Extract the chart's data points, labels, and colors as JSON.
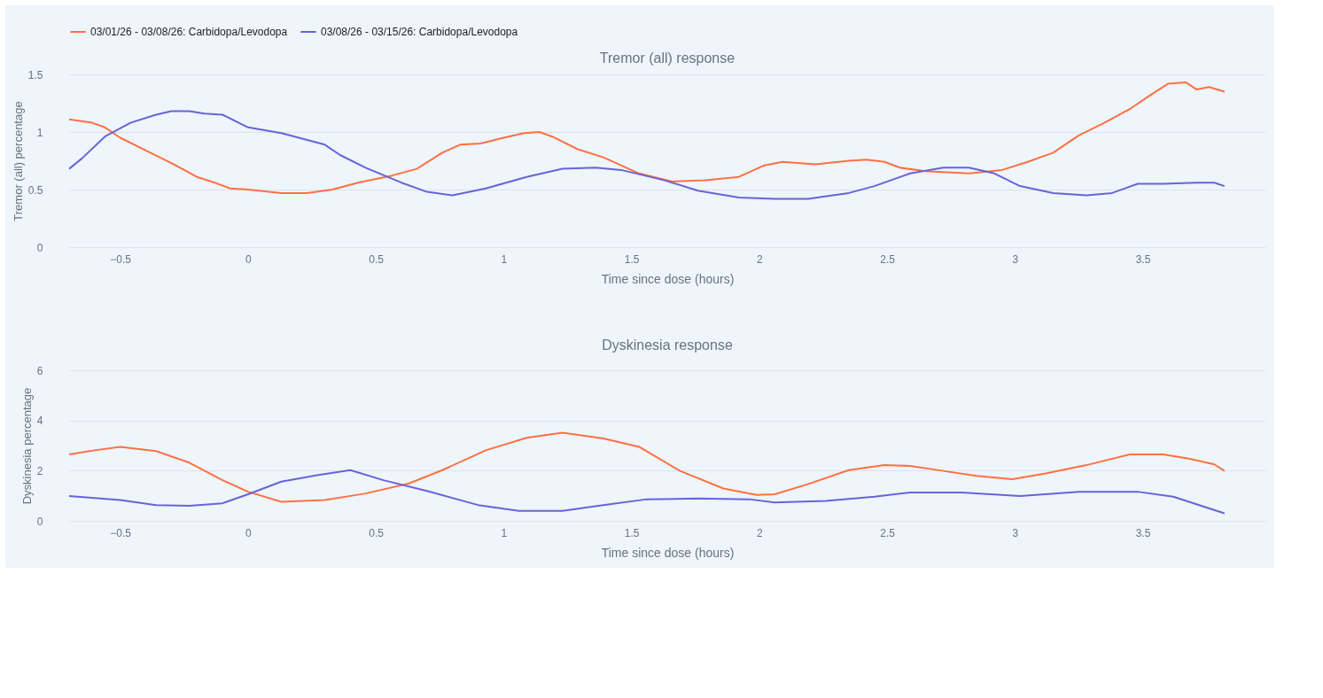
{
  "chart_data": [
    {
      "type": "line",
      "title": "Tremor (all) response",
      "xlabel": "Time since dose (hours)",
      "ylabel": "Tremor (all) percentage",
      "xlim": [
        -0.7,
        3.98
      ],
      "xticks": [
        {
          "value": -0.5,
          "label": "−0.5"
        },
        0,
        0.5,
        1,
        1.5,
        2,
        2.5,
        3,
        3.5
      ],
      "ylim": [
        0,
        1.5
      ],
      "yticks": [
        0,
        0.5,
        1,
        1.5
      ],
      "grid": "y",
      "legend": "top left",
      "series": [
        {
          "name": "03/01/26 - 03/08/26: Carbidopa/Levodopa",
          "color": "#ff7043",
          "x": [
            -0.7,
            -0.61,
            -0.56,
            -0.5,
            -0.4,
            -0.3,
            -0.2,
            -0.13,
            -0.07,
            0,
            0.13,
            0.23,
            0.33,
            0.43,
            0.56,
            0.66,
            0.76,
            0.83,
            0.91,
            1.0,
            1.08,
            1.14,
            1.19,
            1.29,
            1.39,
            1.53,
            1.66,
            1.79,
            1.92,
            2.02,
            2.09,
            2.22,
            2.35,
            2.42,
            2.49,
            2.55,
            2.65,
            2.82,
            2.95,
            3.05,
            3.15,
            3.25,
            3.35,
            3.45,
            3.53,
            3.6,
            3.67,
            3.71,
            3.76,
            3.82
          ],
          "values": [
            1.11,
            1.08,
            1.04,
            0.95,
            0.84,
            0.73,
            0.61,
            0.56,
            0.51,
            0.5,
            0.47,
            0.47,
            0.5,
            0.56,
            0.62,
            0.68,
            0.82,
            0.89,
            0.9,
            0.95,
            0.99,
            1.0,
            0.96,
            0.85,
            0.78,
            0.64,
            0.57,
            0.58,
            0.61,
            0.71,
            0.74,
            0.72,
            0.75,
            0.76,
            0.74,
            0.69,
            0.66,
            0.64,
            0.67,
            0.74,
            0.82,
            0.97,
            1.08,
            1.2,
            1.32,
            1.42,
            1.43,
            1.37,
            1.39,
            1.35
          ]
        },
        {
          "name": "03/08/26 - 03/15/26: Carbidopa/Levodopa",
          "color": "#6b62d6",
          "x": [
            -0.7,
            -0.65,
            -0.56,
            -0.46,
            -0.36,
            -0.3,
            -0.23,
            -0.17,
            -0.1,
            0,
            0.13,
            0.3,
            0.36,
            0.46,
            0.6,
            0.7,
            0.8,
            0.93,
            1.09,
            1.23,
            1.36,
            1.46,
            1.63,
            1.76,
            1.92,
            2.06,
            2.19,
            2.35,
            2.45,
            2.59,
            2.72,
            2.82,
            2.92,
            3.02,
            3.15,
            3.28,
            3.38,
            3.48,
            3.58,
            3.71,
            3.78,
            3.82
          ],
          "values": [
            0.68,
            0.77,
            0.96,
            1.08,
            1.15,
            1.18,
            1.18,
            1.16,
            1.15,
            1.04,
            0.99,
            0.89,
            0.8,
            0.69,
            0.56,
            0.48,
            0.45,
            0.51,
            0.61,
            0.68,
            0.69,
            0.67,
            0.58,
            0.49,
            0.43,
            0.42,
            0.42,
            0.47,
            0.53,
            0.64,
            0.69,
            0.69,
            0.64,
            0.53,
            0.47,
            0.45,
            0.47,
            0.55,
            0.55,
            0.56,
            0.56,
            0.53
          ]
        }
      ]
    },
    {
      "type": "line",
      "title": "Dyskinesia response",
      "xlabel": "Time since dose (hours)",
      "ylabel": "Dyskinesia percentage",
      "xlim": [
        -0.7,
        3.98
      ],
      "xticks": [
        {
          "value": -0.5,
          "label": "−0.5"
        },
        0,
        0.5,
        1,
        1.5,
        2,
        2.5,
        3,
        3.5
      ],
      "ylim": [
        0,
        6
      ],
      "yticks": [
        0,
        2,
        4,
        6
      ],
      "grid": "y",
      "series": [
        {
          "color": "#ff7043",
          "x": [
            -0.7,
            -0.6,
            -0.5,
            -0.36,
            -0.23,
            -0.1,
            0,
            0.13,
            0.3,
            0.46,
            0.63,
            0.76,
            0.93,
            1.09,
            1.23,
            1.39,
            1.53,
            1.69,
            1.86,
            1.99,
            2.06,
            2.19,
            2.35,
            2.49,
            2.59,
            2.72,
            2.85,
            2.99,
            3.12,
            3.28,
            3.45,
            3.58,
            3.68,
            3.78,
            3.82
          ],
          "values": [
            2.65,
            2.81,
            2.95,
            2.78,
            2.32,
            1.62,
            1.16,
            0.76,
            0.83,
            1.09,
            1.49,
            2.02,
            2.81,
            3.31,
            3.51,
            3.28,
            2.95,
            1.99,
            1.29,
            1.03,
            1.06,
            1.46,
            2.02,
            2.22,
            2.19,
            1.99,
            1.79,
            1.66,
            1.89,
            2.22,
            2.65,
            2.65,
            2.48,
            2.25,
            1.99
          ]
        },
        {
          "color": "#6b62d6",
          "x": [
            -0.7,
            -0.5,
            -0.36,
            -0.23,
            -0.1,
            0,
            0.13,
            0.27,
            0.4,
            0.53,
            0.7,
            0.9,
            1.06,
            1.23,
            1.39,
            1.56,
            1.76,
            1.96,
            2.06,
            2.26,
            2.45,
            2.59,
            2.79,
            3.02,
            3.25,
            3.48,
            3.62,
            3.75,
            3.82
          ],
          "values": [
            0.99,
            0.83,
            0.63,
            0.6,
            0.7,
            1.06,
            1.56,
            1.82,
            2.02,
            1.62,
            1.19,
            0.63,
            0.4,
            0.4,
            0.63,
            0.86,
            0.89,
            0.86,
            0.73,
            0.79,
            0.96,
            1.13,
            1.13,
            0.99,
            1.16,
            1.16,
            0.96,
            0.53,
            0.3
          ]
        }
      ]
    }
  ]
}
